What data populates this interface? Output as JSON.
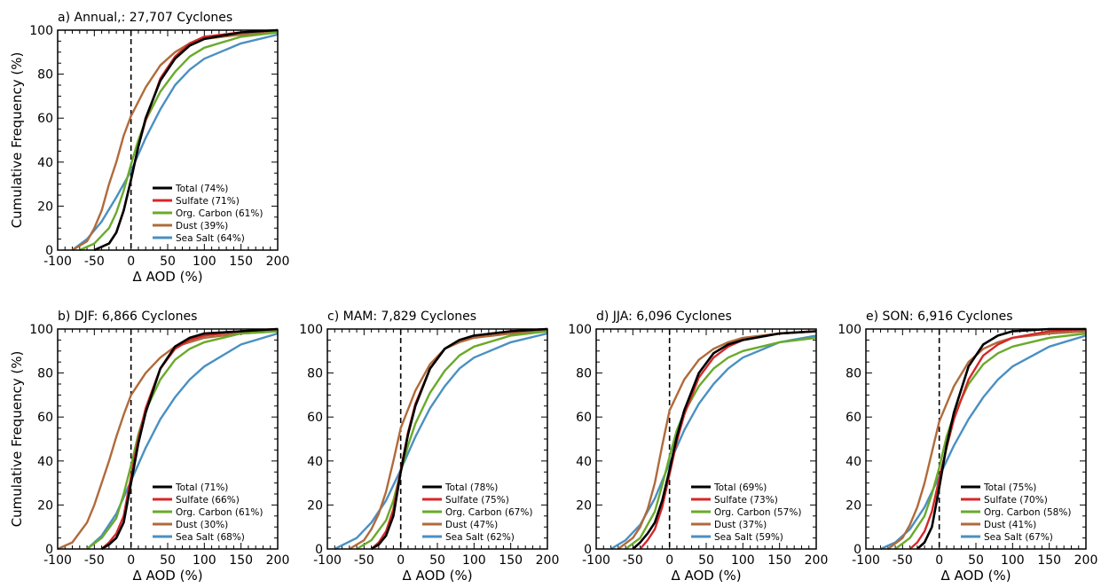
{
  "figure": {
    "shared_ylabel": "Cumulative Frequency (%)",
    "shared_xlabel": "Δ AOD (%)"
  },
  "chart_data": [
    {
      "type": "line",
      "title": "a) Annual,: 27,707 Cyclones",
      "xlabel": "Δ AOD (%)",
      "ylabel": "Cumulative Frequency (%)",
      "xlim": [
        -100,
        200
      ],
      "ylim": [
        0,
        100
      ],
      "x_ticks": [
        "-100",
        "-50",
        "0",
        "50",
        "100",
        "150",
        "200"
      ],
      "y_ticks": [
        "0",
        "20",
        "40",
        "60",
        "80",
        "100"
      ],
      "reference_line_x": 0,
      "legend_position": "lower-right",
      "series": [
        {
          "name": "Total (74%)",
          "color": "#000000",
          "x": [
            -50,
            -30,
            -20,
            -10,
            0,
            10,
            20,
            40,
            60,
            80,
            100,
            150,
            200
          ],
          "y": [
            0,
            3,
            8,
            18,
            32,
            47,
            60,
            77,
            87,
            93,
            96,
            99,
            100
          ]
        },
        {
          "name": "Sulfate (71%)",
          "color": "#d62728",
          "x": [
            -50,
            -30,
            -20,
            -10,
            0,
            10,
            20,
            40,
            60,
            80,
            100,
            150,
            200
          ],
          "y": [
            0,
            3,
            8,
            18,
            32,
            47,
            59,
            78,
            88,
            94,
            97,
            99,
            100
          ]
        },
        {
          "name": "Org. Carbon (61%)",
          "color": "#6aaa2a",
          "x": [
            -70,
            -50,
            -30,
            -20,
            -10,
            0,
            10,
            20,
            40,
            60,
            80,
            100,
            150,
            200
          ],
          "y": [
            0,
            3,
            10,
            17,
            27,
            39,
            50,
            59,
            72,
            81,
            88,
            92,
            97,
            99
          ]
        },
        {
          "name": "Dust (39%)",
          "color": "#b06a3b",
          "x": [
            -80,
            -60,
            -50,
            -40,
            -30,
            -20,
            -10,
            0,
            20,
            40,
            60,
            80,
            100,
            150,
            200
          ],
          "y": [
            0,
            4,
            10,
            18,
            30,
            40,
            52,
            61,
            74,
            84,
            90,
            94,
            96,
            98,
            99
          ]
        },
        {
          "name": "Sea Salt (64%)",
          "color": "#4a90c2",
          "x": [
            -80,
            -60,
            -40,
            -20,
            0,
            20,
            40,
            60,
            80,
            100,
            150,
            200
          ],
          "y": [
            0,
            5,
            13,
            24,
            36,
            51,
            64,
            75,
            82,
            87,
            94,
            98
          ]
        }
      ]
    },
    {
      "type": "line",
      "title": "b) DJF: 6,866 Cyclones",
      "xlabel": "Δ AOD (%)",
      "ylabel": "Cumulative Frequency (%)",
      "xlim": [
        -100,
        200
      ],
      "ylim": [
        0,
        100
      ],
      "x_ticks": [
        "-100",
        "-50",
        "0",
        "50",
        "100",
        "150",
        "200"
      ],
      "y_ticks": [
        "0",
        "20",
        "40",
        "60",
        "80",
        "100"
      ],
      "reference_line_x": 0,
      "legend_position": "lower-right",
      "series": [
        {
          "name": "Total (71%)",
          "color": "#000000",
          "x": [
            -40,
            -30,
            -20,
            -10,
            0,
            10,
            20,
            40,
            60,
            80,
            100,
            150,
            200
          ],
          "y": [
            0,
            2,
            5,
            12,
            30,
            48,
            62,
            82,
            92,
            96,
            98,
            99,
            100
          ]
        },
        {
          "name": "Sulfate (66%)",
          "color": "#d62728",
          "x": [
            -40,
            -30,
            -20,
            -10,
            0,
            10,
            20,
            40,
            60,
            80,
            100,
            150,
            200
          ],
          "y": [
            0,
            3,
            7,
            15,
            33,
            50,
            64,
            82,
            91,
            95,
            97,
            99,
            100
          ]
        },
        {
          "name": "Org. Carbon (61%)",
          "color": "#6aaa2a",
          "x": [
            -60,
            -40,
            -20,
            -10,
            0,
            10,
            20,
            40,
            60,
            80,
            100,
            150,
            200
          ],
          "y": [
            0,
            5,
            14,
            25,
            38,
            52,
            63,
            77,
            86,
            91,
            94,
            98,
            99
          ]
        },
        {
          "name": "Dust (30%)",
          "color": "#b06a3b",
          "x": [
            -100,
            -80,
            -60,
            -50,
            -40,
            -30,
            -20,
            -10,
            0,
            20,
            40,
            60,
            80,
            100,
            150,
            200
          ],
          "y": [
            0,
            3,
            12,
            20,
            30,
            40,
            51,
            61,
            70,
            80,
            87,
            92,
            94,
            96,
            98,
            99
          ]
        },
        {
          "name": "Sea Salt (68%)",
          "color": "#4a90c2",
          "x": [
            -60,
            -40,
            -20,
            0,
            20,
            40,
            60,
            80,
            100,
            150,
            200
          ],
          "y": [
            0,
            6,
            16,
            31,
            46,
            59,
            69,
            77,
            83,
            93,
            98
          ]
        }
      ]
    },
    {
      "type": "line",
      "title": "c) MAM: 7,829 Cyclones",
      "xlabel": "Δ AOD (%)",
      "ylabel": "Cumulative Frequency (%)",
      "xlim": [
        -100,
        200
      ],
      "ylim": [
        0,
        100
      ],
      "x_ticks": [
        "-100",
        "-50",
        "0",
        "50",
        "100",
        "150",
        "200"
      ],
      "y_ticks": [
        "0",
        "20",
        "40",
        "60",
        "80",
        "100"
      ],
      "reference_line_x": 0,
      "legend_position": "lower-right",
      "series": [
        {
          "name": "Total (78%)",
          "color": "#000000",
          "x": [
            -40,
            -30,
            -20,
            -10,
            0,
            10,
            20,
            40,
            60,
            80,
            100,
            150,
            200
          ],
          "y": [
            0,
            2,
            6,
            15,
            35,
            52,
            65,
            82,
            91,
            95,
            97,
            99,
            100
          ]
        },
        {
          "name": "Sulfate (75%)",
          "color": "#d62728",
          "x": [
            -40,
            -30,
            -20,
            -10,
            0,
            10,
            20,
            40,
            60,
            80,
            100,
            150,
            200
          ],
          "y": [
            0,
            3,
            8,
            18,
            36,
            53,
            66,
            82,
            91,
            95,
            97,
            99,
            100
          ]
        },
        {
          "name": "Org. Carbon (67%)",
          "color": "#6aaa2a",
          "x": [
            -60,
            -40,
            -20,
            -10,
            0,
            10,
            20,
            40,
            60,
            80,
            100,
            150,
            200
          ],
          "y": [
            0,
            4,
            13,
            22,
            35,
            47,
            57,
            71,
            81,
            88,
            92,
            97,
            99
          ]
        },
        {
          "name": "Dust (47%)",
          "color": "#b06a3b",
          "x": [
            -70,
            -50,
            -40,
            -30,
            -20,
            -10,
            0,
            20,
            40,
            60,
            80,
            100,
            150,
            200
          ],
          "y": [
            0,
            4,
            9,
            16,
            26,
            40,
            55,
            72,
            84,
            91,
            94,
            96,
            98,
            99
          ]
        },
        {
          "name": "Sea Salt (62%)",
          "color": "#4a90c2",
          "x": [
            -90,
            -60,
            -40,
            -20,
            0,
            20,
            40,
            60,
            80,
            100,
            150,
            200
          ],
          "y": [
            0,
            5,
            12,
            22,
            36,
            51,
            64,
            74,
            82,
            87,
            94,
            98
          ]
        }
      ]
    },
    {
      "type": "line",
      "title": "d) JJA: 6,096 Cyclones",
      "xlabel": "Δ AOD (%)",
      "ylabel": "Cumulative Frequency (%)",
      "xlim": [
        -100,
        200
      ],
      "ylim": [
        0,
        100
      ],
      "x_ticks": [
        "-100",
        "-50",
        "0",
        "50",
        "100",
        "150",
        "200"
      ],
      "y_ticks": [
        "0",
        "20",
        "40",
        "60",
        "80",
        "100"
      ],
      "reference_line_x": 0,
      "legend_position": "lower-right",
      "series": [
        {
          "name": "Total (69%)",
          "color": "#000000",
          "x": [
            -50,
            -40,
            -30,
            -20,
            -10,
            0,
            10,
            20,
            40,
            60,
            80,
            100,
            150,
            200
          ],
          "y": [
            0,
            3,
            7,
            12,
            22,
            36,
            51,
            63,
            80,
            89,
            93,
            95,
            98,
            99
          ]
        },
        {
          "name": "Sulfate (73%)",
          "color": "#d62728",
          "x": [
            -40,
            -30,
            -20,
            -10,
            0,
            10,
            20,
            40,
            60,
            80,
            100,
            150,
            200
          ],
          "y": [
            0,
            4,
            9,
            19,
            34,
            49,
            61,
            78,
            87,
            92,
            95,
            98,
            99
          ]
        },
        {
          "name": "Org. Carbon (57%)",
          "color": "#6aaa2a",
          "x": [
            -60,
            -40,
            -20,
            -10,
            0,
            10,
            20,
            40,
            60,
            80,
            100,
            150,
            200
          ],
          "y": [
            0,
            5,
            17,
            29,
            42,
            54,
            62,
            74,
            82,
            87,
            90,
            94,
            96
          ]
        },
        {
          "name": "Dust (37%)",
          "color": "#b06a3b",
          "x": [
            -70,
            -50,
            -40,
            -30,
            -20,
            -10,
            0,
            20,
            40,
            60,
            80,
            100,
            150,
            200
          ],
          "y": [
            0,
            5,
            10,
            18,
            30,
            47,
            63,
            77,
            86,
            91,
            94,
            96,
            98,
            99
          ]
        },
        {
          "name": "Sea Salt (59%)",
          "color": "#4a90c2",
          "x": [
            -80,
            -60,
            -40,
            -20,
            0,
            20,
            40,
            60,
            80,
            100,
            150,
            200
          ],
          "y": [
            0,
            4,
            11,
            23,
            39,
            54,
            66,
            75,
            82,
            87,
            94,
            97
          ]
        }
      ]
    },
    {
      "type": "line",
      "title": "e) SON: 6,916 Cyclones",
      "xlabel": "Δ AOD (%)",
      "ylabel": "Cumulative Frequency (%)",
      "xlim": [
        -100,
        200
      ],
      "ylim": [
        0,
        100
      ],
      "x_ticks": [
        "-100",
        "-50",
        "0",
        "50",
        "100",
        "150",
        "200"
      ],
      "y_ticks": [
        "0",
        "20",
        "40",
        "60",
        "80",
        "100"
      ],
      "reference_line_x": 0,
      "legend_position": "lower-right",
      "series": [
        {
          "name": "Total (75%)",
          "color": "#000000",
          "x": [
            -30,
            -20,
            -10,
            0,
            10,
            20,
            40,
            60,
            80,
            100,
            150,
            200
          ],
          "y": [
            0,
            3,
            10,
            28,
            47,
            62,
            83,
            93,
            97,
            99,
            100,
            100
          ]
        },
        {
          "name": "Sulfate (70%)",
          "color": "#d62728",
          "x": [
            -40,
            -30,
            -20,
            -10,
            0,
            10,
            20,
            40,
            60,
            80,
            100,
            150,
            200
          ],
          "y": [
            0,
            3,
            8,
            17,
            32,
            46,
            59,
            77,
            88,
            93,
            96,
            99,
            100
          ]
        },
        {
          "name": "Org. Carbon (58%)",
          "color": "#6aaa2a",
          "x": [
            -60,
            -40,
            -20,
            -10,
            0,
            10,
            20,
            40,
            60,
            80,
            100,
            150,
            200
          ],
          "y": [
            0,
            5,
            15,
            25,
            37,
            51,
            61,
            75,
            84,
            89,
            92,
            96,
            98
          ]
        },
        {
          "name": "Dust (41%)",
          "color": "#b06a3b",
          "x": [
            -70,
            -50,
            -40,
            -30,
            -20,
            -10,
            0,
            20,
            40,
            60,
            80,
            100,
            150,
            200
          ],
          "y": [
            0,
            5,
            11,
            19,
            30,
            44,
            58,
            74,
            85,
            91,
            94,
            96,
            98,
            99
          ]
        },
        {
          "name": "Sea Salt (67%)",
          "color": "#4a90c2",
          "x": [
            -80,
            -60,
            -40,
            -20,
            0,
            20,
            40,
            60,
            80,
            100,
            150,
            200
          ],
          "y": [
            0,
            3,
            9,
            19,
            33,
            47,
            59,
            69,
            77,
            83,
            92,
            97
          ]
        }
      ]
    }
  ]
}
